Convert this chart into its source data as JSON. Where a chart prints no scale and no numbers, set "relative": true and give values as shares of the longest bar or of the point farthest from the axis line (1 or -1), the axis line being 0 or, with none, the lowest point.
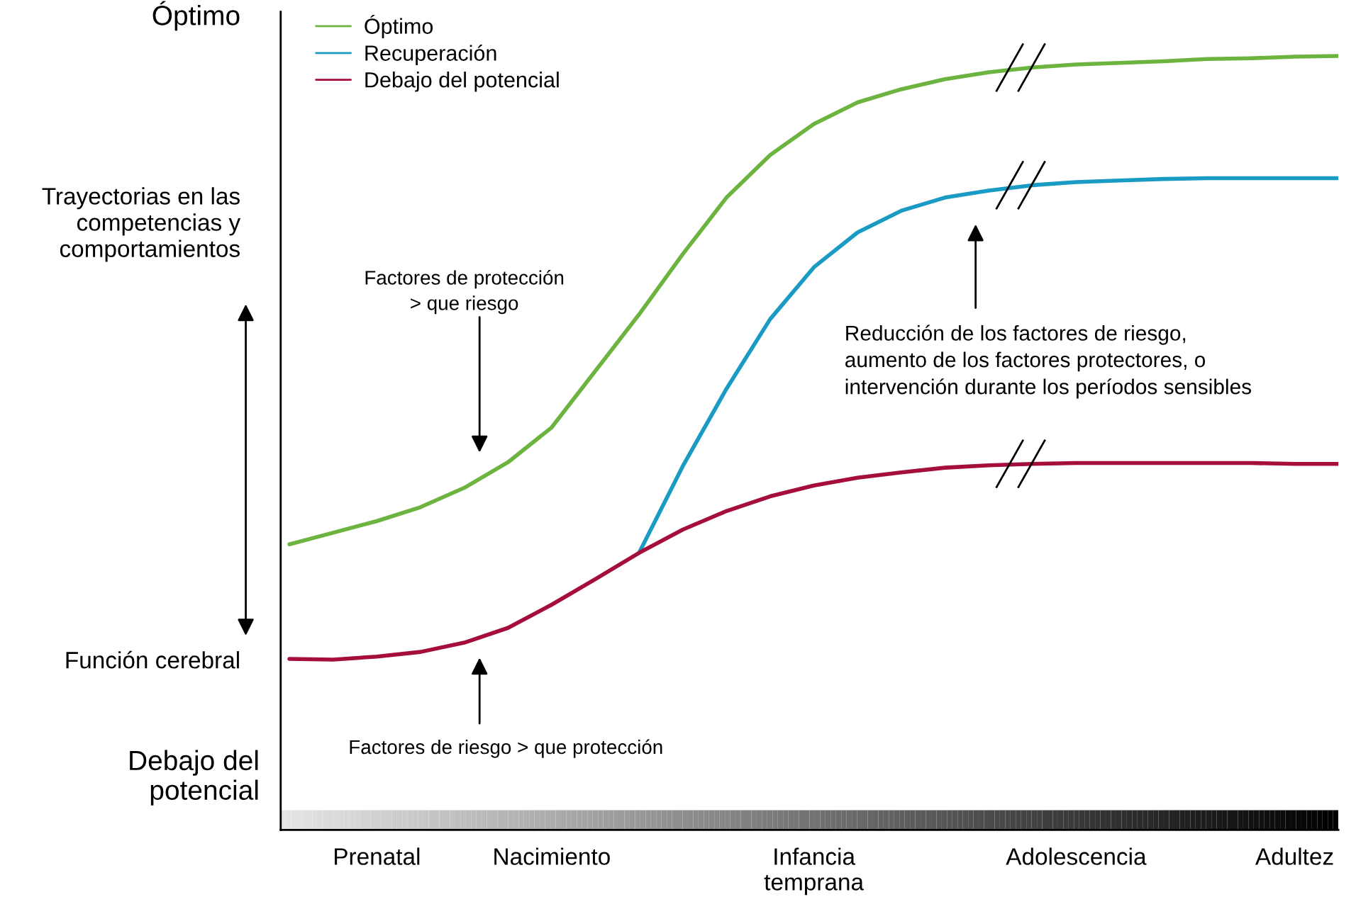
{
  "chart_data": {
    "type": "line",
    "relative": true,
    "categories": [
      null,
      null,
      "Prenatal",
      null,
      null,
      null,
      "Nacimiento",
      null,
      null,
      null,
      null,
      null,
      "Infancia\ntemprana",
      null,
      null,
      null,
      null,
      null,
      "Adolescencia",
      null,
      null,
      null,
      null,
      "Adultez",
      null
    ],
    "ylabel": "Trayectorias en las\ncompetencias y\ncomportamientos",
    "series": [
      {
        "name": "Óptimo",
        "color": "#6db33f",
        "values": [
          0.369,
          0.384,
          0.399,
          0.417,
          0.442,
          0.475,
          0.52,
          0.593,
          0.666,
          0.744,
          0.817,
          0.872,
          0.912,
          0.94,
          0.957,
          0.97,
          0.979,
          0.985,
          0.989,
          0.991,
          0.993,
          0.996,
          0.997,
          0.999,
          1.0
        ]
      },
      {
        "name": "Recuperación",
        "color": "#1a9bc4",
        "values": [
          null,
          null,
          null,
          null,
          null,
          null,
          null,
          null,
          0.358,
          0.47,
          0.57,
          0.66,
          0.727,
          0.772,
          0.8,
          0.817,
          0.826,
          0.833,
          0.837,
          0.839,
          0.841,
          0.842,
          0.842,
          0.842,
          0.842
        ]
      },
      {
        "name": "Debajo del potencial",
        "color": "#a50d3a",
        "values": [
          0.221,
          0.22,
          0.224,
          0.23,
          0.242,
          0.261,
          0.291,
          0.324,
          0.358,
          0.388,
          0.412,
          0.431,
          0.445,
          0.455,
          0.462,
          0.468,
          0.471,
          0.473,
          0.474,
          0.474,
          0.474,
          0.474,
          0.474,
          0.473,
          0.473
        ]
      }
    ],
    "annotations": [
      "Óptimo",
      "Debajo del\npotencial",
      "Función cerebral",
      "Factores de protección\n> que riesgo",
      "Factores de riesgo > que protección",
      "Reducción de los factores de riesgo,\naumento de los factores protectores, o\nintervención durante los períodos sensibles"
    ],
    "legend": "top left",
    "grid": false,
    "marker": "none",
    "line_style": "solid"
  }
}
